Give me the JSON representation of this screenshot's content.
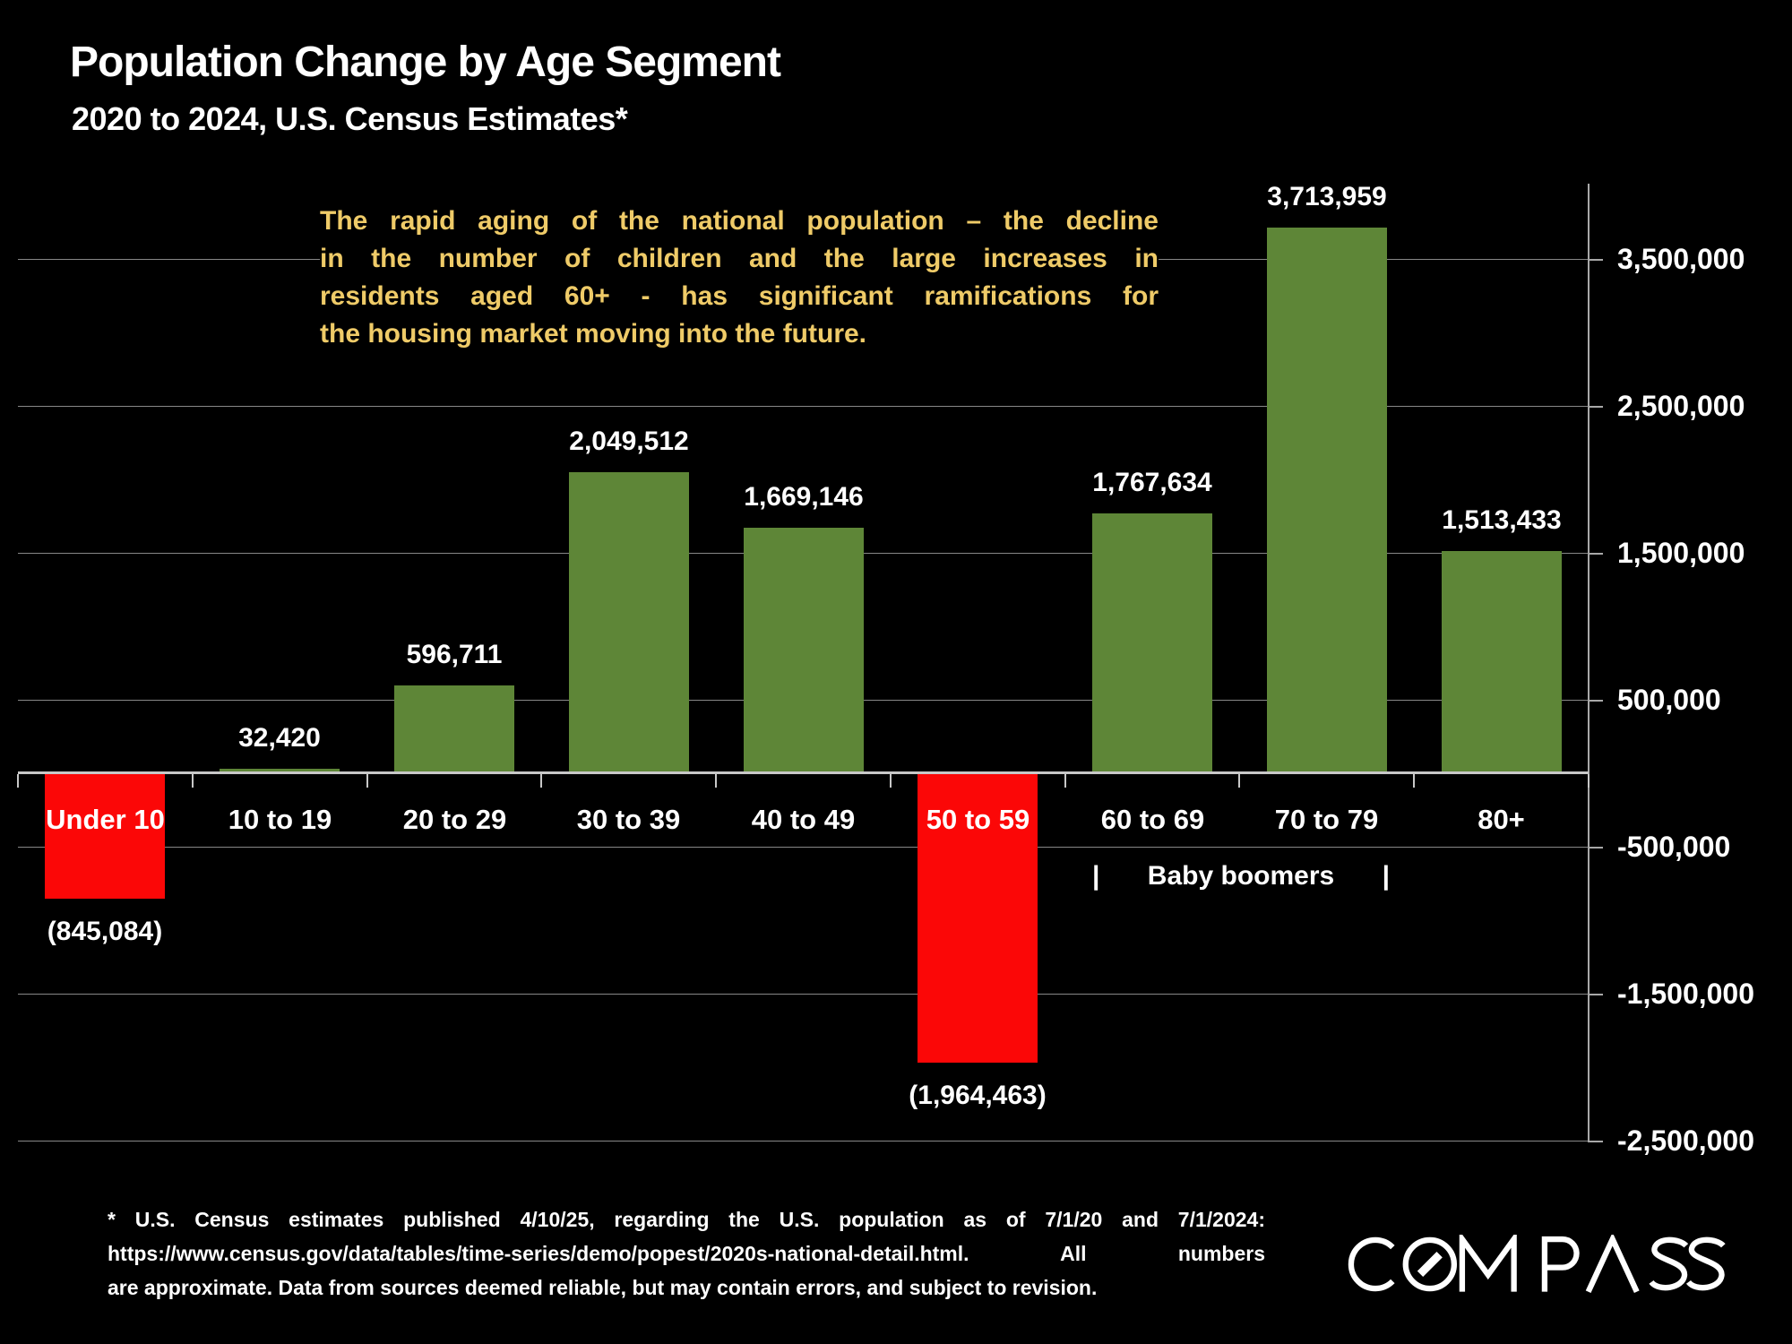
{
  "header": {
    "title": "Population Change by Age Segment",
    "subtitle": "2020 to 2024, U.S. Census Estimates*"
  },
  "annotation": {
    "color": "#EFCB68",
    "lines": [
      "The rapid aging of the national population – the decline",
      "in the number of children and the large increases in",
      "residents aged 60+ - has significant ramifications for",
      "the housing market moving into the future."
    ]
  },
  "chart_data": {
    "type": "bar",
    "title": "Population Change by Age Segment",
    "subtitle": "2020 to 2024, U.S. Census Estimates*",
    "categories": [
      "Under 10",
      "10 to 19",
      "20 to 29",
      "30 to 39",
      "40 to 49",
      "50 to 59",
      "60 to 69",
      "70 to 79",
      "80+"
    ],
    "values": [
      -845084,
      32420,
      596711,
      2049512,
      1669146,
      -1964463,
      1767634,
      3713959,
      1513433
    ],
    "labels": [
      "(845,084)",
      "32,420",
      "596,711",
      "2,049,512",
      "1,669,146",
      "(1,964,463)",
      "1,767,634",
      "3,713,959",
      "1,513,433"
    ],
    "positive_color": "#5E8637",
    "negative_color": "#FB0707",
    "background_color": "#000000",
    "grid": true,
    "legend_position": "none",
    "ylim": [
      -2600000,
      4000000
    ],
    "yticks": [
      3500000,
      2500000,
      1500000,
      500000,
      -500000,
      -1500000,
      -2500000
    ],
    "ytick_labels": [
      "3,500,000",
      "2,500,000",
      "1,500,000",
      "500,000",
      "-500,000",
      "-1,500,000",
      "-2,500,000"
    ],
    "group_annotation": {
      "left_pipe": "|",
      "label": "Baby boomers",
      "right_pipe": "|",
      "from_category": "60 to 69",
      "to_category": "70 to 79"
    }
  },
  "footnote": {
    "lines": [
      "* U.S. Census estimates published 4/10/25, regarding the U.S. population as of 7/1/20 and 7/1/2024:",
      "https://www.census.gov/data/tables/time-series/demo/popest/2020s-national-detail.html. All numbers",
      "are approximate. Data from sources deemed reliable, but may contain errors, and subject to revision."
    ]
  },
  "footer": {
    "brand": "COMPASS"
  }
}
